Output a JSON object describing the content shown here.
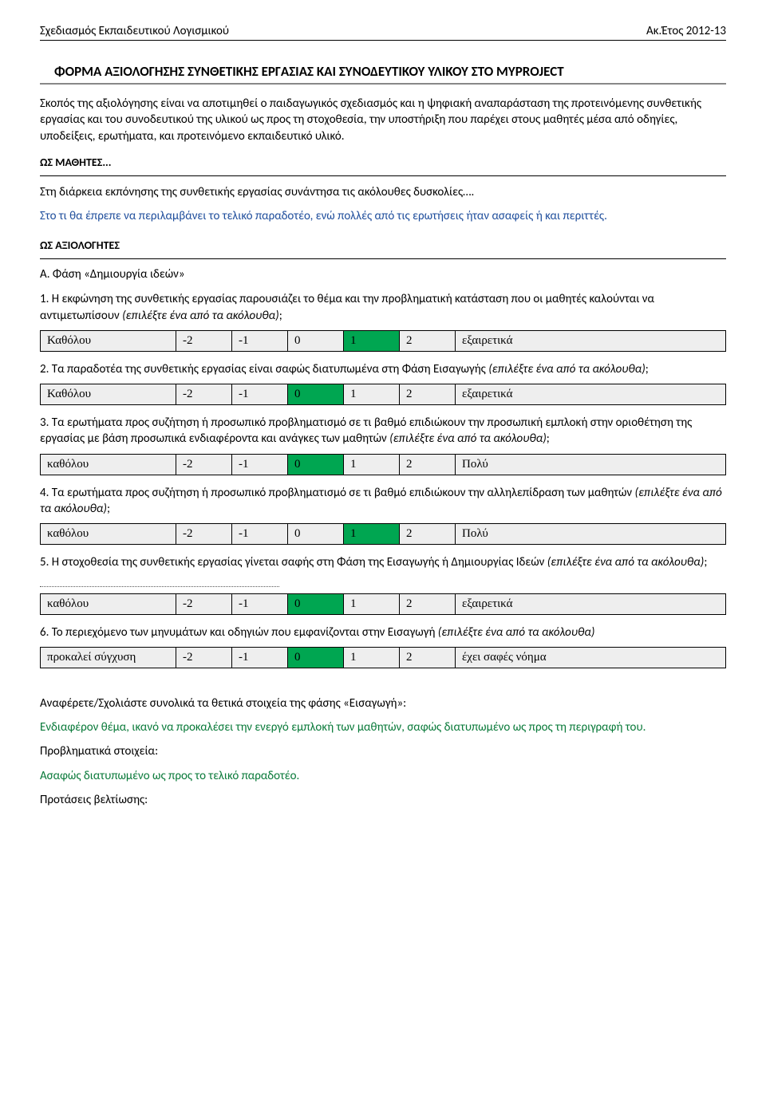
{
  "header": {
    "left": "Σχεδιασμός Εκπαιδευτικού Λογισμικού",
    "right": "Ακ.Έτος 2012-13"
  },
  "form_title": "ΦΟΡΜΑ ΑΞΙΟΛΟΓΗΣΗΣ ΣΥΝΘΕΤΙΚΗΣ ΕΡΓΑΣΙΑΣ ΚΑΙ ΣΥΝΟΔΕΥΤΙΚΟΥ ΥΛΙΚΟΥ ΣΤΟ MYPROJECT",
  "intro_paragraph": "Σκοπός της αξιολόγησης είναι να αποτιμηθεί ο παιδαγωγικός σχεδιασμός και η ψηφιακή αναπαράσταση της προτεινόμενης συνθετικής εργασίας και του συνοδευτικού της υλικού ως προς τη στοχοθεσία, την υποστήριξη που παρέχει στους μαθητές μέσα από οδηγίες, υποδείξεις, ερωτήματα, και προτεινόμενο εκπαιδευτικό υλικό.",
  "students_section": {
    "heading": "ΩΣ ΜΑΘΗΤΕΣ...",
    "prompt": "Στη διάρκεια εκπόνησης της συνθετικής εργασίας συνάντησα τις ακόλουθες δυσκολίες….",
    "response": "Στο τι θα έπρεπε να περιλαμβάνει το τελικό παραδοτέο, ενώ πολλές από τις ερωτήσεις ήταν ασαφείς ή και περιττές."
  },
  "evaluators_heading": "ΩΣ ΑΞΙΟΛΟΓΗΤΕΣ",
  "phase_a_label": "Α. Φάση «Δημιουργία ιδεών»",
  "scale_values": [
    "-2",
    "-1",
    "0",
    "1",
    "2"
  ],
  "selected_color": "#00a651",
  "unselected_color": "#eeeeee",
  "questions": [
    {
      "text_pre": "1. Η εκφώνηση της συνθετικής εργασίας παρουσιάζει το θέμα και την προβληματική κατάσταση που οι μαθητές καλούνται να αντιμετωπίσουν ",
      "text_italic": "(επιλέξτε ένα από τα ακόλουθα)",
      "text_post": ";",
      "left_label": "Καθόλου",
      "right_label": "εξαιρετικά",
      "selected_index": 3
    },
    {
      "text_pre": "2. Τα παραδοτέα της συνθετικής εργασίας είναι σαφώς διατυπωμένα στη Φάση Εισαγωγής ",
      "text_italic": "(επιλέξτε ένα από τα ακόλουθα)",
      "text_post": ";",
      "left_label": "Καθόλου",
      "right_label": "εξαιρετικά",
      "selected_index": 2
    },
    {
      "text_pre": "3. Τα ερωτήματα προς συζήτηση ή προσωπικό προβληματισμό σε τι βαθμό επιδιώκουν την προσωπική εμπλοκή στην οριοθέτηση της εργασίας με βάση προσωπικά ενδιαφέροντα και ανάγκες των μαθητών ",
      "text_italic": "(επιλέξτε ένα από τα ακόλουθα)",
      "text_post": ";",
      "left_label": "καθόλου",
      "right_label": "Πολύ",
      "selected_index": 2
    },
    {
      "text_pre": "4. Τα ερωτήματα προς συζήτηση ή προσωπικό προβληματισμό σε τι βαθμό επιδιώκουν την αλληλεπίδραση των μαθητών ",
      "text_italic": "(επιλέξτε ένα από τα ακόλουθα)",
      "text_post": ";",
      "left_label": "καθόλου",
      "right_label": "Πολύ",
      "selected_index": 3
    },
    {
      "text_pre": "5. Η στοχοθεσία της συνθετικής εργασίας γίνεται σαφής στη Φάση της Εισαγωγής ή Δημιουργίας Ιδεών ",
      "text_italic": "(επιλέξτε ένα από τα ακόλουθα)",
      "text_post": "; ",
      "dotted_line": true,
      "left_label": "καθόλου",
      "right_label": "εξαιρετικά",
      "selected_index": 2
    },
    {
      "text_pre": "6. Το περιεχόμενο των μηνυμάτων και οδηγιών που εμφανίζονται στην Εισαγωγή ",
      "text_italic": "(επιλέξτε ένα από τα ακόλουθα)",
      "text_post": "",
      "left_label": "προκαλεί σύγχυση",
      "right_label": "έχει σαφές νόημα",
      "selected_index": 2
    }
  ],
  "comments": {
    "positive_prompt": "Αναφέρετε/Σχολιάστε συνολικά τα θετικά στοιχεία της φάσης «Εισαγωγή»:",
    "positive_response": "Ενδιαφέρον θέμα, ικανό να προκαλέσει την ενεργό εμπλοκή των μαθητών, σαφώς διατυπωμένο ως προς τη περιγραφή του.",
    "problem_prompt": "Προβληματικά  στοιχεία:",
    "problem_response": "Ασαφώς διατυπωμένο ως προς το τελικό παραδοτέο.",
    "improve_prompt": "Προτάσεις βελτίωσης:"
  }
}
